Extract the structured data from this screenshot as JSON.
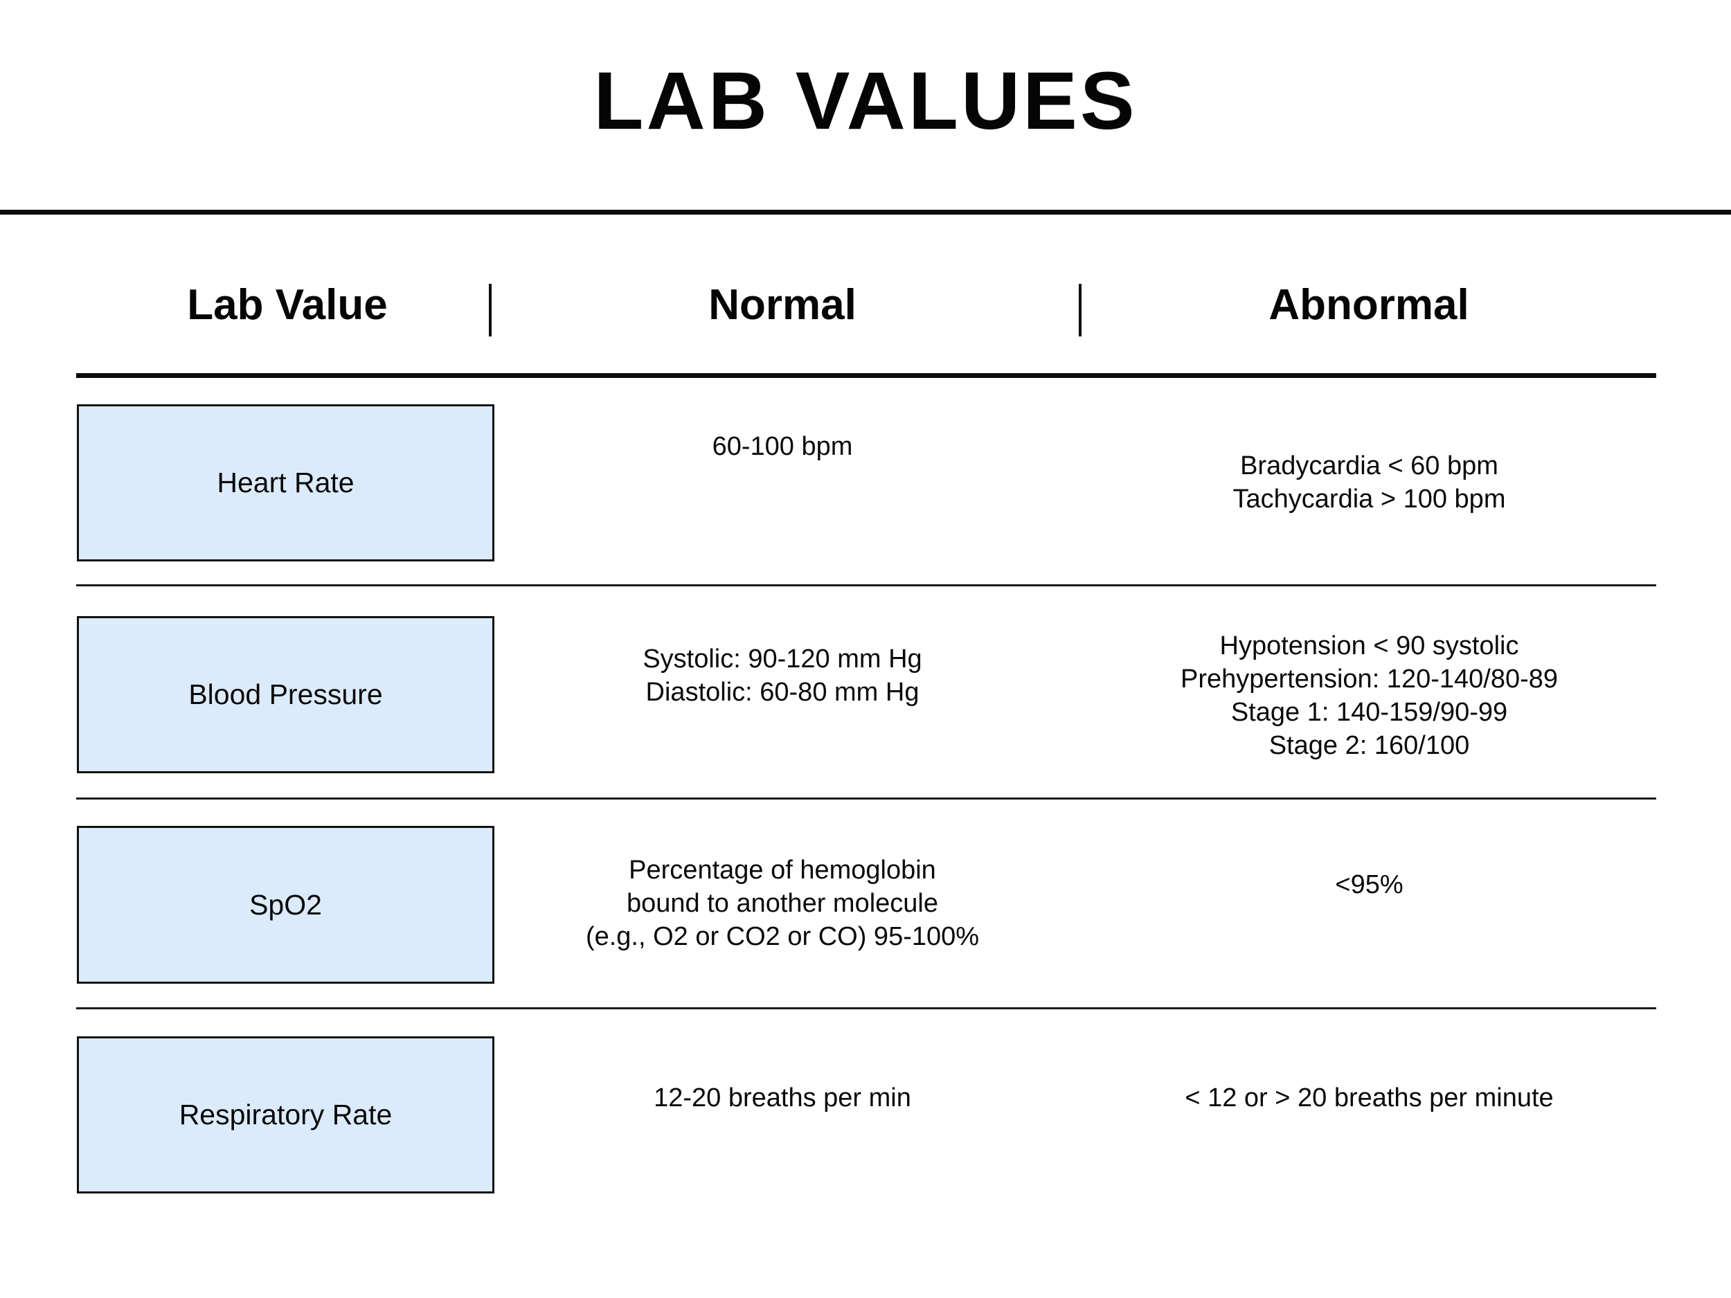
{
  "title": "LAB VALUES",
  "table": {
    "headers": [
      "Lab Value",
      "Normal",
      "Abnormal"
    ],
    "rows": [
      {
        "label": "Heart Rate",
        "normal": [
          "60-100 bpm"
        ],
        "abnormal": [
          "Bradycardia < 60 bpm",
          "Tachycardia > 100 bpm"
        ]
      },
      {
        "label": "Blood Pressure",
        "normal": [
          "Systolic: 90-120 mm Hg",
          "Diastolic: 60-80 mm Hg"
        ],
        "abnormal": [
          "Hypotension < 90 systolic",
          "Prehypertension: 120-140/80-89",
          "Stage 1: 140-159/90-99",
          "Stage 2: 160/100"
        ]
      },
      {
        "label": "SpO2",
        "normal": [
          "Percentage of hemoglobin",
          "bound to another molecule",
          "(e.g., O2 or CO2 or CO) 95-100%"
        ],
        "abnormal": [
          "<95%"
        ]
      },
      {
        "label": "Respiratory Rate",
        "normal": [
          "12-20 breaths per min"
        ],
        "abnormal": [
          "< 12 or > 20 breaths per minute"
        ]
      }
    ]
  },
  "colors": {
    "background": "#ffffff",
    "text": "#0a0a0a",
    "line": "#0d0d0d",
    "label_box_fill": "#dcebfb",
    "label_box_border": "#101010"
  }
}
